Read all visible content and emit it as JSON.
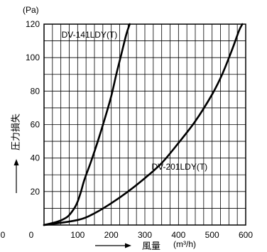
{
  "chart_data": {
    "type": "line",
    "xlabel": "風量",
    "xunit": "(m³/h)",
    "ylabel": "圧力損失",
    "yunit": "(Pa)",
    "xlim": [
      0,
      600
    ],
    "ylim": [
      0,
      120
    ],
    "x_ticks": [
      0,
      100,
      200,
      300,
      400,
      500,
      600
    ],
    "y_ticks": [
      20,
      40,
      60,
      80,
      100,
      120
    ],
    "x_tick_labels": [
      "0",
      "100",
      "200",
      "300",
      "400",
      "500",
      "600"
    ],
    "y_tick_labels": [
      "20",
      "40",
      "60",
      "80",
      "100",
      "120"
    ],
    "outer_zero_label": "0",
    "grid": true,
    "series": [
      {
        "name": "DV-141LDY(T)",
        "color": "#000000",
        "points": [
          [
            0,
            0
          ],
          [
            40,
            2
          ],
          [
            70,
            5
          ],
          [
            90,
            10
          ],
          [
            100,
            14
          ],
          [
            110,
            20
          ],
          [
            120,
            27
          ],
          [
            140,
            38
          ],
          [
            160,
            50
          ],
          [
            180,
            63
          ],
          [
            200,
            77
          ],
          [
            215,
            90
          ],
          [
            230,
            102
          ],
          [
            245,
            114
          ],
          [
            255,
            120
          ]
        ]
      },
      {
        "name": "DV-201LDY(T)",
        "color": "#000000",
        "points": [
          [
            0,
            0
          ],
          [
            100,
            3
          ],
          [
            150,
            7
          ],
          [
            200,
            13
          ],
          [
            250,
            20
          ],
          [
            300,
            28
          ],
          [
            350,
            37
          ],
          [
            400,
            49
          ],
          [
            450,
            62
          ],
          [
            500,
            78
          ],
          [
            530,
            90
          ],
          [
            560,
            105
          ],
          [
            580,
            116
          ],
          [
            590,
            120
          ]
        ]
      }
    ]
  }
}
